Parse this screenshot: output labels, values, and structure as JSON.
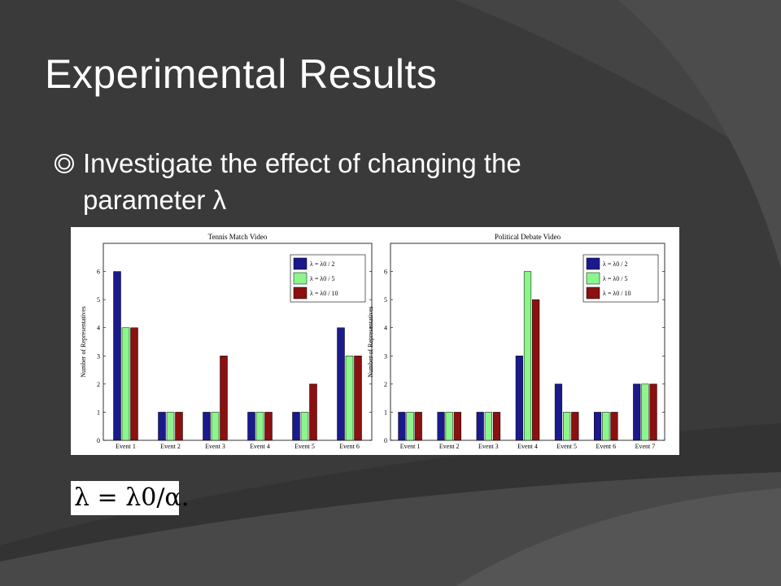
{
  "slide": {
    "title": "Experimental Results",
    "bullet": "Investigate the effect of changing the parameter λ",
    "formula": "λ = λ0/α."
  },
  "colors": {
    "background": "#3a3a3a",
    "band_light": "#4a4a4a",
    "band_dark": "#333333",
    "series_colors": [
      "#1a1a8c",
      "#8cf58c",
      "#8b1010"
    ]
  },
  "chart_data": [
    {
      "type": "bar",
      "title": "Tennis Match Video",
      "ylabel": "Number of Representatives",
      "xlabel": "",
      "categories": [
        "Event 1",
        "Event 2",
        "Event 3",
        "Event 4",
        "Event 5",
        "Event 6"
      ],
      "series": [
        {
          "name": "λ = λ0 / 2",
          "values": [
            6,
            1,
            1,
            1,
            1,
            4
          ]
        },
        {
          "name": "λ = λ0 / 5",
          "values": [
            4,
            1,
            1,
            1,
            1,
            3
          ]
        },
        {
          "name": "λ = λ0 / 10",
          "values": [
            4,
            1,
            3,
            1,
            2,
            3
          ]
        }
      ],
      "ylim": [
        0,
        7
      ],
      "yticks": [
        0,
        1,
        2,
        3,
        4,
        5,
        6
      ],
      "legend": "top-right",
      "grid": false
    },
    {
      "type": "bar",
      "title": "Political Debate Video",
      "ylabel": "Number of Representatives",
      "xlabel": "",
      "categories": [
        "Event 1",
        "Event 2",
        "Event 3",
        "Event 4",
        "Event 5",
        "Event 6",
        "Event 7"
      ],
      "series": [
        {
          "name": "λ = λ0 / 2",
          "values": [
            1,
            1,
            1,
            3,
            2,
            1,
            2
          ]
        },
        {
          "name": "λ = λ0 / 5",
          "values": [
            1,
            1,
            1,
            6,
            1,
            1,
            2
          ]
        },
        {
          "name": "λ = λ0 / 10",
          "values": [
            1,
            1,
            1,
            5,
            1,
            1,
            2
          ]
        }
      ],
      "ylim": [
        0,
        7
      ],
      "yticks": [
        0,
        1,
        2,
        3,
        4,
        5,
        6
      ],
      "legend": "top-right",
      "grid": false
    }
  ]
}
